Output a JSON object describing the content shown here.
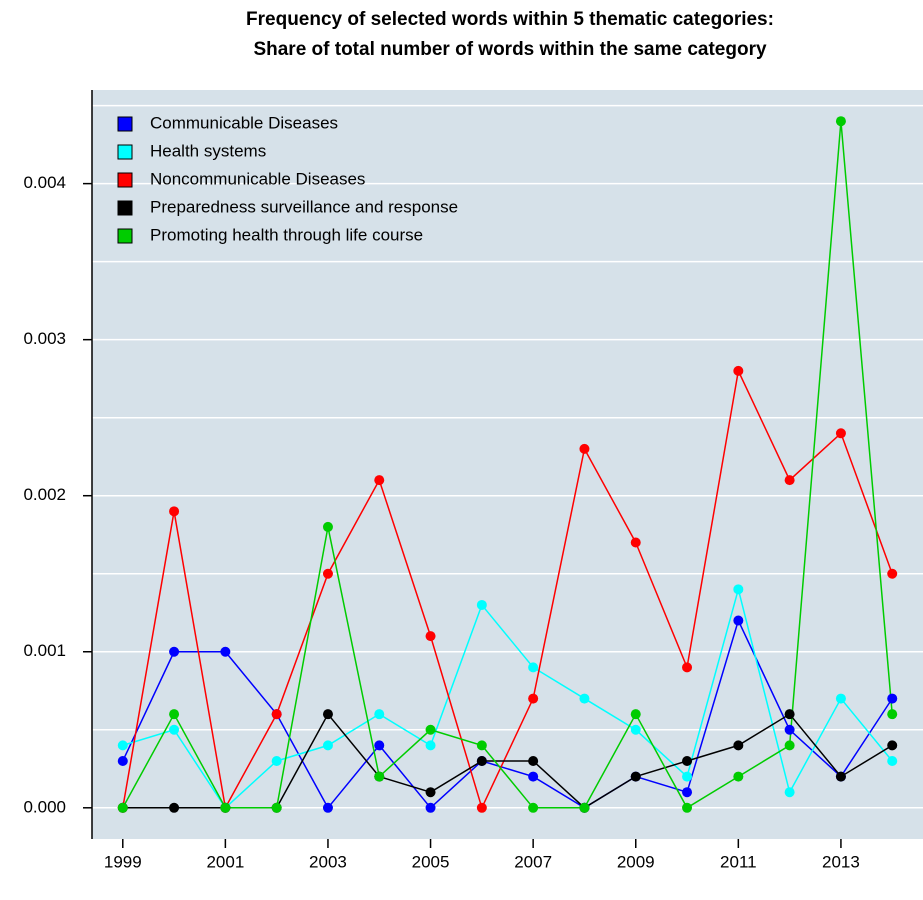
{
  "chart_data": {
    "type": "line",
    "title": [
      "Frequency of selected words within 5 thematic categories:",
      "Share of total number of words within the same category"
    ],
    "x": [
      1999,
      2000,
      2001,
      2002,
      2003,
      2004,
      2005,
      2006,
      2007,
      2008,
      2009,
      2010,
      2011,
      2012,
      2013,
      2014
    ],
    "xlim": [
      1998.4,
      2014.6
    ],
    "xticks": [
      1999,
      2001,
      2003,
      2005,
      2007,
      2009,
      2011,
      2013
    ],
    "ylim": [
      -0.0002,
      0.0046
    ],
    "yticks": [
      {
        "value": 0,
        "label": "0.000"
      },
      {
        "value": 0.001,
        "label": "0.001"
      },
      {
        "value": 0.002,
        "label": "0.002"
      },
      {
        "value": 0.003,
        "label": "0.003"
      },
      {
        "value": 0.004,
        "label": "0.004"
      }
    ],
    "ygrid": [
      0,
      0.0005,
      0.001,
      0.0015,
      0.002,
      0.0025,
      0.003,
      0.0035,
      0.004,
      0.0045
    ],
    "grid": true,
    "legend": "top-left",
    "background": "#d6e1e9",
    "series": [
      {
        "name": "Communicable Diseases",
        "color": "#0000ff",
        "values": [
          0.0003,
          0.001,
          0.001,
          0.0006,
          0,
          0.0004,
          0,
          0.0003,
          0.0002,
          0,
          0.0002,
          0.0001,
          0.0012,
          0.0005,
          0.0002,
          0.0007
        ]
      },
      {
        "name": "Health systems",
        "color": "#00ffff",
        "values": [
          0.0004,
          0.0005,
          0,
          0.0003,
          0.0004,
          0.0006,
          0.0004,
          0.0013,
          0.0009,
          0.0007,
          0.0005,
          0.0002,
          0.0014,
          0.0001,
          0.0007,
          0.0003
        ]
      },
      {
        "name": "Noncommunicable Diseases",
        "color": "#ff0000",
        "values": [
          0,
          0.0019,
          0,
          0.0006,
          0.0015,
          0.0021,
          0.0011,
          0,
          0.0007,
          0.0023,
          0.0017,
          0.0009,
          0.0028,
          0.0021,
          0.0024,
          0.0015
        ]
      },
      {
        "name": "Preparedness surveillance and response",
        "color": "#000000",
        "values": [
          0,
          0,
          0,
          0,
          0.0006,
          0.0002,
          0.0001,
          0.0003,
          0.0003,
          0,
          0.0002,
          0.0003,
          0.0004,
          0.0006,
          0.0002,
          0.0004
        ]
      },
      {
        "name": "Promoting health through life course",
        "color": "#00cc00",
        "values": [
          0,
          0.0006,
          0,
          0,
          0.0018,
          0.0002,
          0.0005,
          0.0004,
          0,
          0,
          0.0006,
          0,
          0.0002,
          0.0004,
          0.0044,
          0.0006
        ]
      }
    ]
  }
}
